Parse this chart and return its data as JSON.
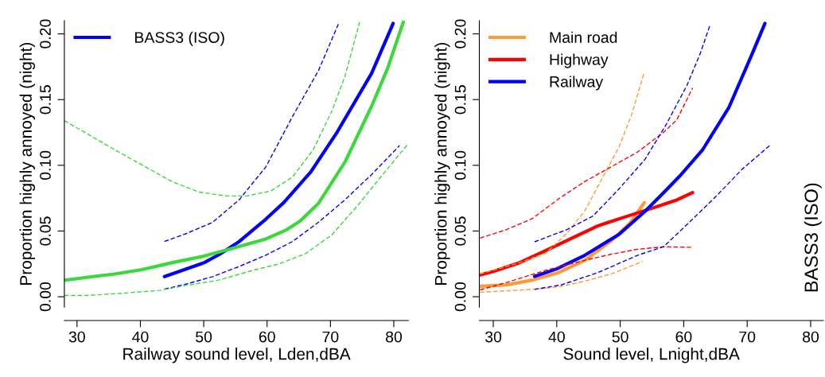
{
  "chart_data": [
    {
      "type": "line",
      "xlabel": "Railway sound level, Lden,dBA",
      "ylabel": "Proportion highly annoyed (night)",
      "xlim": [
        28,
        82.3
      ],
      "ylim": [
        -0.008,
        0.21
      ],
      "xticks": [
        30,
        40,
        50,
        60,
        70,
        80
      ],
      "yticks": [
        {
          "value": 0,
          "label": "0.00"
        },
        {
          "value": 0.05,
          "label": "0.05"
        },
        {
          "value": 0.1,
          "label": "0.10"
        },
        {
          "value": 0.15,
          "label": "0.15"
        },
        {
          "value": 0.2,
          "label": "0.20"
        }
      ],
      "grid": false,
      "legend": "top left",
      "marker": "none",
      "series": [
        {
          "name": "BASS3 (ISO)",
          "color": "#0000ff",
          "line_style": "solid",
          "x": [
            43.8,
            50.1,
            52.6,
            55.6,
            59.8,
            62.7,
            66.9,
            71.1,
            76.5,
            79.9
          ],
          "values": [
            0.0153,
            0.026,
            0.0326,
            0.042,
            0.059,
            0.072,
            0.095,
            0.1256,
            0.17,
            0.208
          ]
        },
        {
          "color": "#3ad83a",
          "line_style": "solid",
          "x": [
            28,
            32.5,
            35.9,
            40.1,
            45.1,
            50.1,
            53.5,
            59.8,
            63.1,
            65.2,
            68.1,
            72.3,
            76.5,
            79,
            81.5
          ],
          "values": [
            0.0125,
            0.0153,
            0.0173,
            0.0205,
            0.026,
            0.031,
            0.0355,
            0.044,
            0.051,
            0.0575,
            0.071,
            0.1026,
            0.145,
            0.1735,
            0.209
          ]
        },
        {
          "color": "#0000ff",
          "line_style": "dashed",
          "x": [
            43.8,
            47.2,
            51.4,
            55.6,
            59.8,
            64,
            68.1,
            71.3
          ],
          "values": [
            0.042,
            0.048,
            0.0566,
            0.0738,
            0.0988,
            0.137,
            0.172,
            0.208
          ]
        },
        {
          "color": "#0000ff",
          "line_style": "dashed",
          "x": [
            43.8,
            47.2,
            51.4,
            55.6,
            59.8,
            64,
            68.1,
            72.3,
            76.5,
            80.9
          ],
          "values": [
            0.0058,
            0.0096,
            0.0153,
            0.023,
            0.0316,
            0.042,
            0.0566,
            0.0738,
            0.093,
            0.115
          ]
        },
        {
          "color": "#3ad83a",
          "line_style": "dashed",
          "x": [
            28,
            31.7,
            35.9,
            40.1,
            45.1,
            49.3,
            53.5,
            56.8,
            60.6,
            64,
            67.3,
            70.2,
            72.3,
            74.6
          ],
          "values": [
            0.134,
            0.1237,
            0.112,
            0.1007,
            0.0873,
            0.0796,
            0.0767,
            0.0767,
            0.0805,
            0.091,
            0.112,
            0.141,
            0.1678,
            0.209
          ]
        },
        {
          "color": "#3ad83a",
          "line_style": "dashed",
          "x": [
            28,
            31.7,
            36.7,
            43,
            47.2,
            52.2,
            57.7,
            61.9,
            66,
            70.2,
            74.4,
            78.6,
            82.2
          ],
          "values": [
            0.001,
            0.001,
            0.0025,
            0.0048,
            0.0086,
            0.0125,
            0.02,
            0.025,
            0.0326,
            0.047,
            0.07,
            0.095,
            0.116
          ]
        }
      ]
    },
    {
      "type": "line",
      "xlabel": "Sound level, Lnight,dBA",
      "ylabel": "Proportion highly annoyed (night)",
      "annotations": [
        "BASS3 (ISO)"
      ],
      "xlim": [
        27.8,
        82
      ],
      "ylim": [
        -0.008,
        0.21
      ],
      "xticks": [
        30,
        40,
        50,
        60,
        70,
        80
      ],
      "yticks": [
        {
          "value": 0,
          "label": "0.00"
        },
        {
          "value": 0.05,
          "label": "0.05"
        },
        {
          "value": 0.1,
          "label": "0.10"
        },
        {
          "value": 0.15,
          "label": "0.15"
        },
        {
          "value": 0.2,
          "label": "0.20"
        }
      ],
      "grid": false,
      "legend": "top left",
      "marker": "none",
      "series": [
        {
          "name": "Main road",
          "color": "#ff9933",
          "line_style": "solid",
          "x": [
            27.9,
            32.1,
            36.2,
            40.3,
            44.4,
            48.6,
            51.5,
            53.8
          ],
          "values": [
            0.008,
            0.009,
            0.0127,
            0.0184,
            0.0277,
            0.0427,
            0.0558,
            0.0717
          ]
        },
        {
          "name": "Highway",
          "color": "#ff0000",
          "line_style": "solid",
          "x": [
            27.9,
            30,
            34.1,
            38.3,
            42.4,
            46.5,
            50.6,
            54.8,
            58.9,
            61.4
          ],
          "values": [
            0.0165,
            0.0193,
            0.0258,
            0.0352,
            0.0446,
            0.054,
            0.0605,
            0.067,
            0.0736,
            0.0792
          ]
        },
        {
          "name": "Railway",
          "color": "#0000ff",
          "line_style": "solid",
          "x": [
            36.5,
            39.9,
            44.4,
            49.8,
            53.9,
            56.8,
            59.3,
            63,
            67.1,
            70.8,
            72.8
          ],
          "values": [
            0.0155,
            0.021,
            0.0315,
            0.0474,
            0.065,
            0.079,
            0.0914,
            0.112,
            0.1438,
            0.185,
            0.208
          ]
        },
        {
          "color": "#ff9933",
          "line_style": "dashed",
          "x": [
            27.9,
            34.1,
            38.3,
            41.6,
            44.4,
            47.3,
            49.8,
            51.9,
            53.7
          ],
          "values": [
            0.0174,
            0.0258,
            0.0333,
            0.0483,
            0.0652,
            0.0914,
            0.1139,
            0.14,
            0.1697
          ]
        },
        {
          "color": "#ff9933",
          "line_style": "dashed",
          "x": [
            27.9,
            36.2,
            40.3,
            44.4,
            48.6,
            53.5
          ],
          "values": [
            0.0034,
            0.0056,
            0.0075,
            0.0118,
            0.0174,
            0.0268
          ]
        },
        {
          "color": "#ff0000",
          "line_style": "dashed",
          "x": [
            27.9,
            32.1,
            36.2,
            40.3,
            44.4,
            48.6,
            52.7,
            56.8,
            58.9,
            61.4
          ],
          "values": [
            0.0446,
            0.0511,
            0.0596,
            0.0745,
            0.0876,
            0.0989,
            0.11,
            0.125,
            0.1345,
            0.1588
          ]
        },
        {
          "color": "#ff0000",
          "line_style": "dashed",
          "x": [
            27.9,
            32.1,
            38.3,
            44.4,
            48.6,
            52.7,
            56.8,
            61.4
          ],
          "values": [
            0.0052,
            0.0109,
            0.0202,
            0.0277,
            0.0324,
            0.0361,
            0.038,
            0.0376
          ]
        },
        {
          "color": "#0000ff",
          "line_style": "dashed",
          "x": [
            36.5,
            41.6,
            45.7,
            49.8,
            53.9,
            57.2,
            60.5,
            62.6,
            64.2
          ],
          "values": [
            0.0418,
            0.0511,
            0.0614,
            0.082,
            0.1045,
            0.1307,
            0.1607,
            0.185,
            0.2075
          ]
        },
        {
          "color": "#0000ff",
          "line_style": "dashed",
          "x": [
            36.5,
            40.7,
            46.5,
            52.7,
            56.8,
            60.1,
            65.1,
            69.2,
            73.7
          ],
          "values": [
            0.0056,
            0.009,
            0.0184,
            0.0315,
            0.038,
            0.053,
            0.0764,
            0.097,
            0.1157
          ]
        }
      ]
    }
  ]
}
